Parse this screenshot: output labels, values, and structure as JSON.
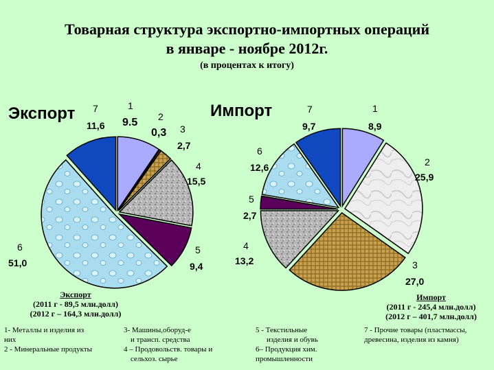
{
  "title_line1": "Товарная структура экспортно-импортных операций",
  "title_line2": "в январе - ноябре 2012г.",
  "title_line3": "(в процентах к итогу)",
  "chart_data": [
    {
      "type": "pie",
      "title": "Экспорт",
      "categories": [
        "1",
        "2",
        "3",
        "4",
        "5",
        "6",
        "7"
      ],
      "values": [
        9.5,
        0.3,
        2.7,
        15.5,
        9.4,
        51.0,
        11.6
      ],
      "value_labels": [
        "9.5",
        "0,3",
        "2,7",
        "15,5",
        "9,4",
        "51,0",
        "11,6"
      ],
      "colors": [
        "#aaaaff",
        "#c8a050",
        "#c8a050",
        "#b0b0b0",
        "#5a005a",
        "#aadff0",
        "#1048c0"
      ]
    },
    {
      "type": "pie",
      "title": "Импорт",
      "categories": [
        "1",
        "2",
        "3",
        "4",
        "5",
        "6",
        "7"
      ],
      "values": [
        8.9,
        25.9,
        27.0,
        13.2,
        2.7,
        12.6,
        9.7
      ],
      "value_labels": [
        "8,9",
        "25,9",
        "27,0",
        "13,2",
        "2,7",
        "12,6",
        "9,7"
      ],
      "colors": [
        "#aaaaff",
        "#ececec",
        "#c8a050",
        "#b0b0b0",
        "#5a005a",
        "#aadff0",
        "#1048c0"
      ]
    }
  ],
  "export_caption": {
    "title": "Экспорт",
    "line1": "(2011 г  - 89,5 млн.долл)",
    "line2": "(2012 г – 164,3 млн.долл)"
  },
  "import_caption": {
    "title": "Импорт",
    "line1": "(2011 г  - 245,4 млн.долл)",
    "line2": "(2012 г – 401,7 млн.долл)"
  },
  "legend": {
    "item1_line1": "1- Металлы и изделия    из",
    "item1_line2": "них",
    "item2": "2 - Минеральные продукты",
    "item3_line1": "3- Машины,оборуд-е",
    "item3_line2": "и трансп. средства",
    "item4_line1": "4 – Продовольств. товары и",
    "item4_line2": "сельхоз. сырье",
    "item5_line1": "5 - Текстильные",
    "item5_line2": "изделия и обувь",
    "item6_line1": "6– Продукция хим.",
    "item6_line2": "промышленности",
    "item7_line1": "7 - Прочие товары (пластмассы,",
    "item7_line2": "древесина, изделия из камня)"
  }
}
